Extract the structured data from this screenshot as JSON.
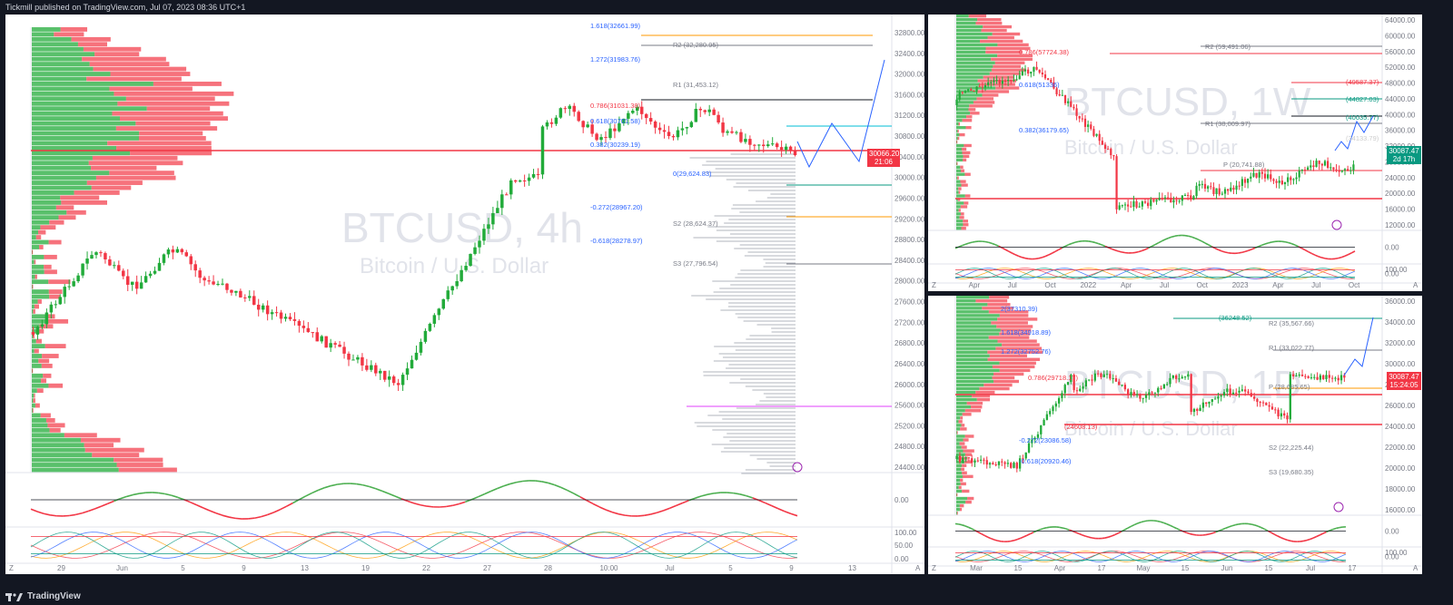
{
  "header": {
    "published_text": "Tickmill published on TradingView.com, Jul 07, 2023 08:36 UTC+1"
  },
  "footer": {
    "brand": "TradingView"
  },
  "left_chart": {
    "symbol_watermark": "BTCUSD, 4h",
    "name_watermark": "Bitcoin / U.S. Dollar",
    "price_label": "30066.20",
    "price_timer": "21:06",
    "fib_labels": [
      "1.618(32661.99)",
      "1.272(31983.76)",
      "0.786(31031.38)",
      "0.618(30701.58)",
      "0.382(30239.19)",
      "0(29,624.83)",
      "-0.272(28967.20)",
      "-0.618(28278.97)"
    ],
    "pivot_labels": [
      "R2 (32,280.95)",
      "R1 (31,453.12)",
      "S2 (28,624.37)",
      "S3 (27,796.54)"
    ],
    "y_ticks": [
      "32800.00",
      "32400.00",
      "32000.00",
      "31600.00",
      "31200.00",
      "30800.00",
      "30400.00",
      "30000.00",
      "29600.00",
      "29200.00",
      "28800.00",
      "28400.00",
      "28000.00",
      "27600.00",
      "27200.00",
      "26800.00",
      "26400.00",
      "26000.00",
      "25600.00",
      "25200.00",
      "24800.00",
      "24400.00"
    ],
    "x_ticks": [
      "29",
      "Jun",
      "5",
      "9",
      "13",
      "19",
      "22",
      "27",
      "28",
      "10:00",
      "Jul",
      "5",
      "9",
      "13"
    ],
    "osc_ticks": [
      "0.00",
      "100.00",
      "50.00",
      "0.00"
    ]
  },
  "top_right_chart": {
    "symbol_watermark": "BTCUSD, 1W",
    "name_watermark": "Bitcoin / U.S. Dollar",
    "currency": "USD",
    "price_label": "30087.47",
    "price_timer": "2d 17h",
    "fib_labels": [
      "0.786(57724.38)",
      "0.618(51336)",
      "0.382(36179.65)",
      "(40035.77)",
      "(44827.03)",
      "(49587.37)",
      "(34133.79)"
    ],
    "pivot_labels": [
      "R2 (59,491.06)",
      "R1 (38,009.97)",
      "P (20,741.88)"
    ],
    "y_ticks": [
      "64000.00",
      "60000.00",
      "56000.00",
      "52000.00",
      "48000.00",
      "44000.00",
      "40000.00",
      "36000.00",
      "32000.00",
      "28000.00",
      "24000.00",
      "20000.00",
      "16000.00",
      "12000.00"
    ],
    "x_ticks": [
      "Apr",
      "Jul",
      "Oct",
      "2022",
      "Apr",
      "Jul",
      "Oct",
      "2023",
      "Apr",
      "Jul",
      "Oct"
    ],
    "osc_ticks": [
      "0.00",
      "100.00",
      "0.00"
    ]
  },
  "bottom_right_chart": {
    "symbol_watermark": "BTCUSD, 1D",
    "name_watermark": "Bitcoin / U.S. Dollar",
    "price_label": "30087.47",
    "price_timer": "15:24:05",
    "fib_labels": [
      "2(37310.39)",
      "1.618(34918.89)",
      "1.272(32752.76)",
      "0.786(29718.17)",
      "-0.272(23086.58)",
      "-0.618(20920.46)",
      "(36248.52)",
      "(24608.13)"
    ],
    "pivot_labels": [
      "R2 (35,567.66)",
      "R1 (33,022.77)",
      "P (28,685.65)",
      "S2 (22,225.44)",
      "S3 (19,680.35)"
    ],
    "y_ticks": [
      "36000.00",
      "34000.00",
      "32000.00",
      "30000.00",
      "28000.00",
      "26000.00",
      "24000.00",
      "22000.00",
      "20000.00",
      "18000.00",
      "16000.00"
    ],
    "x_ticks": [
      "Mar",
      "15",
      "Apr",
      "17",
      "May",
      "15",
      "Jun",
      "15",
      "Jul",
      "17"
    ],
    "osc_ticks": [
      "0.00",
      "100.00",
      "0.00"
    ]
  },
  "colors": {
    "up": "#089981",
    "green": "#22ab3a",
    "down": "#f23645",
    "fib_blue": "#2962ff",
    "pivot": "#787b86",
    "frame": "#131722"
  }
}
